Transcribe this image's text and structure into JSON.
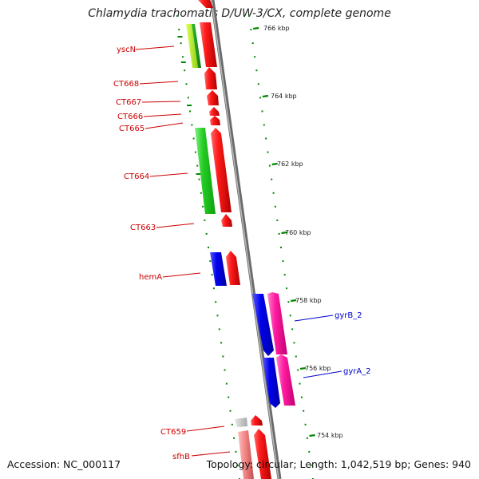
{
  "title": "Chlamydia trachomatis D/UW-3/CX, complete genome",
  "footer": {
    "accession": "Accession: NC_000117",
    "summary": "Topology: circular; Length: 1,042,519 bp; Genes: 940"
  },
  "colors": {
    "forward_gene": "#e00000",
    "reverse_gene": "#10d010",
    "blue_gene": "#0000ee",
    "pink_gene": "#ff1aa0",
    "grey_gene": "#c8c8c8",
    "light_red_gene": "#f08080",
    "yellow_green_gene": "#b0f020",
    "backbone": "#808080",
    "tick": "#008800",
    "label_red": "#cc0000",
    "label_blue": "#0000cc"
  },
  "scale": {
    "unit": "kbp",
    "ticks": [
      {
        "label": "766 kbp"
      },
      {
        "label": "764 kbp"
      },
      {
        "label": "762 kbp"
      },
      {
        "label": "760 kbp"
      },
      {
        "label": "758 kbp"
      },
      {
        "label": "756 kbp"
      },
      {
        "label": "754 kbp"
      }
    ]
  },
  "labels": [
    {
      "text": "yscN",
      "color": "red"
    },
    {
      "text": "CT668",
      "color": "red"
    },
    {
      "text": "CT667",
      "color": "red"
    },
    {
      "text": "CT666",
      "color": "red"
    },
    {
      "text": "CT665",
      "color": "red"
    },
    {
      "text": "CT664",
      "color": "red"
    },
    {
      "text": "CT663",
      "color": "red"
    },
    {
      "text": "hemA",
      "color": "red"
    },
    {
      "text": "gyrB_2",
      "color": "blue"
    },
    {
      "text": "gyrA_2",
      "color": "blue"
    },
    {
      "text": "CT659",
      "color": "red"
    },
    {
      "text": "sfhB",
      "color": "red"
    }
  ]
}
